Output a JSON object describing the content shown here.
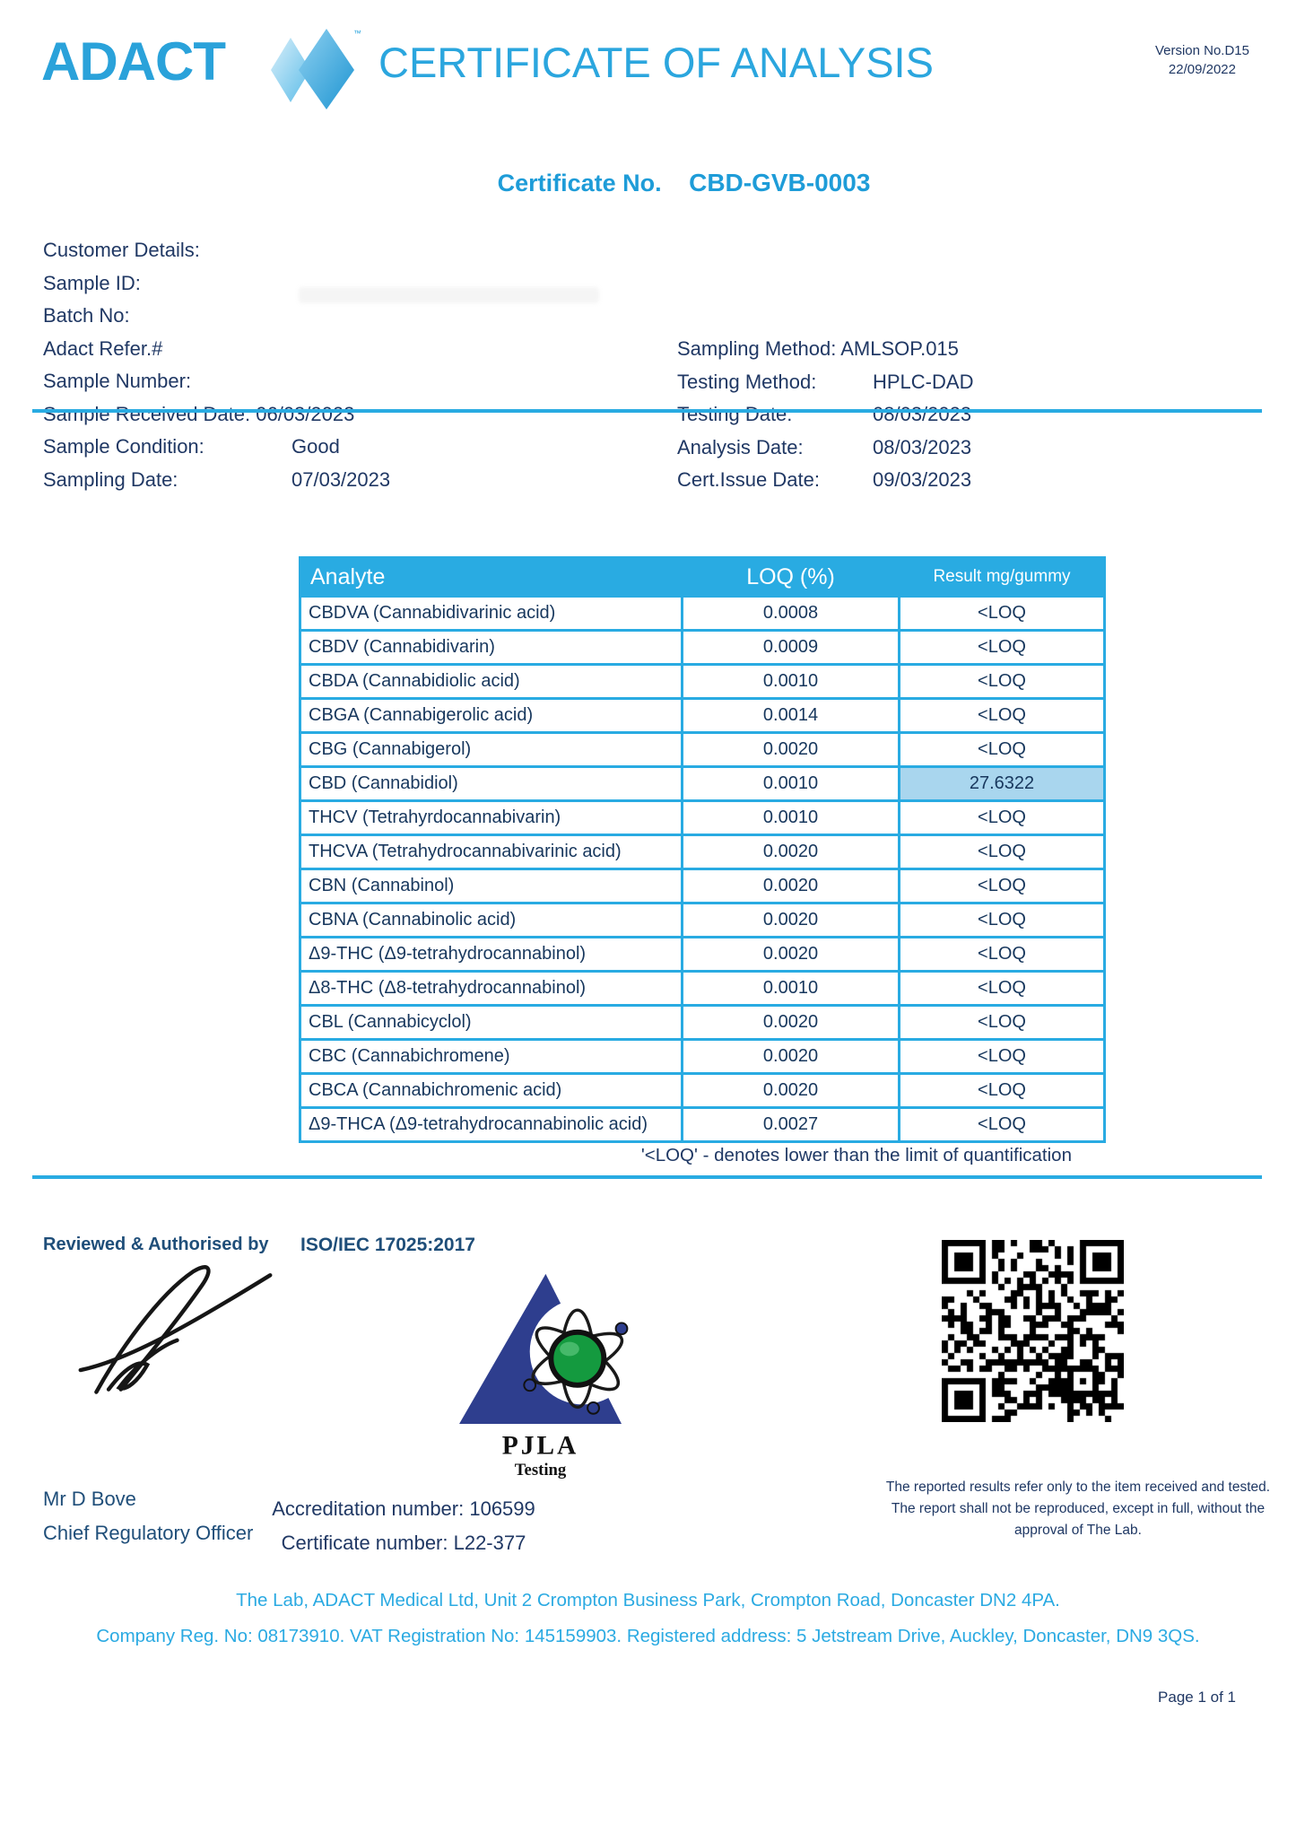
{
  "header": {
    "brand": "ADACT",
    "trademark": "TM",
    "title": "CERTIFICATE OF ANALYSIS",
    "version_line1": "Version No.D15",
    "version_line2": "22/09/2022"
  },
  "certificate": {
    "label": "Certificate No.",
    "number": "CBD-GVB-0003"
  },
  "details": {
    "left": [
      {
        "label": "Customer Details:",
        "value": ""
      },
      {
        "label": "Sample ID:",
        "value": ""
      },
      {
        "label": "Batch No:",
        "value": ""
      },
      {
        "label": "Adact Refer.#",
        "value": ""
      },
      {
        "label": "Sample Number:",
        "value": ""
      },
      {
        "label": "Sample Received Date: 06/03/2023",
        "value": ""
      },
      {
        "label": "Sample Condition:",
        "value": "Good"
      },
      {
        "label": "Sampling Date:",
        "value": "07/03/2023"
      }
    ],
    "right": [
      {
        "label": "Sampling Method: AMLSOP.015",
        "value": ""
      },
      {
        "label": "Testing Method:",
        "value": "HPLC-DAD"
      },
      {
        "label": "Testing Date:",
        "value": "08/03/2023"
      },
      {
        "label": "Analysis Date:",
        "value": "08/03/2023"
      },
      {
        "label": "Cert.Issue Date:",
        "value": "09/03/2023"
      }
    ]
  },
  "table": {
    "headers": [
      "Analyte",
      "LOQ (%)",
      "Result mg/gummy"
    ],
    "rows": [
      {
        "analyte": "CBDVA (Cannabidivarinic acid)",
        "loq": "0.0008",
        "result": "<LOQ",
        "highlight": false
      },
      {
        "analyte": "CBDV (Cannabidivarin)",
        "loq": "0.0009",
        "result": "<LOQ",
        "highlight": false
      },
      {
        "analyte": "CBDA (Cannabidiolic acid)",
        "loq": "0.0010",
        "result": "<LOQ",
        "highlight": false
      },
      {
        "analyte": "CBGA (Cannabigerolic acid)",
        "loq": "0.0014",
        "result": "<LOQ",
        "highlight": false
      },
      {
        "analyte": "CBG (Cannabigerol)",
        "loq": "0.0020",
        "result": "<LOQ",
        "highlight": false
      },
      {
        "analyte": "CBD (Cannabidiol)",
        "loq": "0.0010",
        "result": "27.6322",
        "highlight": true
      },
      {
        "analyte": "THCV (Tetrahyrdocannabivarin)",
        "loq": "0.0010",
        "result": "<LOQ",
        "highlight": false
      },
      {
        "analyte": "THCVA (Tetrahydrocannabivarinic acid)",
        "loq": "0.0020",
        "result": "<LOQ",
        "highlight": false
      },
      {
        "analyte": "CBN (Cannabinol)",
        "loq": "0.0020",
        "result": "<LOQ",
        "highlight": false
      },
      {
        "analyte": "CBNA (Cannabinolic acid)",
        "loq": "0.0020",
        "result": "<LOQ",
        "highlight": false
      },
      {
        "analyte": "Δ9-THC (Δ9-tetrahydrocannabinol)",
        "loq": "0.0020",
        "result": "<LOQ",
        "highlight": false
      },
      {
        "analyte": "Δ8-THC (Δ8-tetrahydrocannabinol)",
        "loq": "0.0010",
        "result": "<LOQ",
        "highlight": false
      },
      {
        "analyte": "CBL (Cannabicyclol)",
        "loq": "0.0020",
        "result": "<LOQ",
        "highlight": false
      },
      {
        "analyte": "CBC (Cannabichromene)",
        "loq": "0.0020",
        "result": "<LOQ",
        "highlight": false
      },
      {
        "analyte": "CBCA (Cannabichromenic acid)",
        "loq": "0.0020",
        "result": "<LOQ",
        "highlight": false
      },
      {
        "analyte": "Δ9-THCA (Δ9-tetrahydrocannabinolic acid)",
        "loq": "0.0027",
        "result": "<LOQ",
        "highlight": false
      }
    ]
  },
  "note": "'<LOQ' - denotes lower than the limit of quantification",
  "footer": {
    "reviewed_label": "Reviewed & Authorised by",
    "iso_label": "ISO/IEC 17025:2017",
    "pjla_line1": "PJLA",
    "pjla_line2": "Testing",
    "signer_name": "Mr D Bove",
    "signer_title": "Chief Regulatory Officer",
    "accreditation": "Accreditation number: 106599",
    "certificate_number": "Certificate number: L22-377",
    "disclaimer": "The reported results refer only to the item received and tested. The report shall not be reproduced, except in full, without the approval of The Lab.",
    "address_line1": "The Lab, ADACT Medical Ltd, Unit 2 Crompton Business Park, Crompton Road, Doncaster DN2 4PA.",
    "address_line2": "Company Reg. No: 08173910. VAT Registration No: 145159903. Registered address: 5 Jetstream Drive, Auckley, Doncaster, DN9 3QS.",
    "page": "Page 1 of 1"
  },
  "colors": {
    "accent": "#29ABE2",
    "title_blue": "#2BA6DE",
    "navy": "#203864",
    "table_text": "#17375D",
    "highlight_cell": "#A9D6EE",
    "pjla_blue": "#2E3E8E",
    "pjla_green": "#149A3F"
  }
}
